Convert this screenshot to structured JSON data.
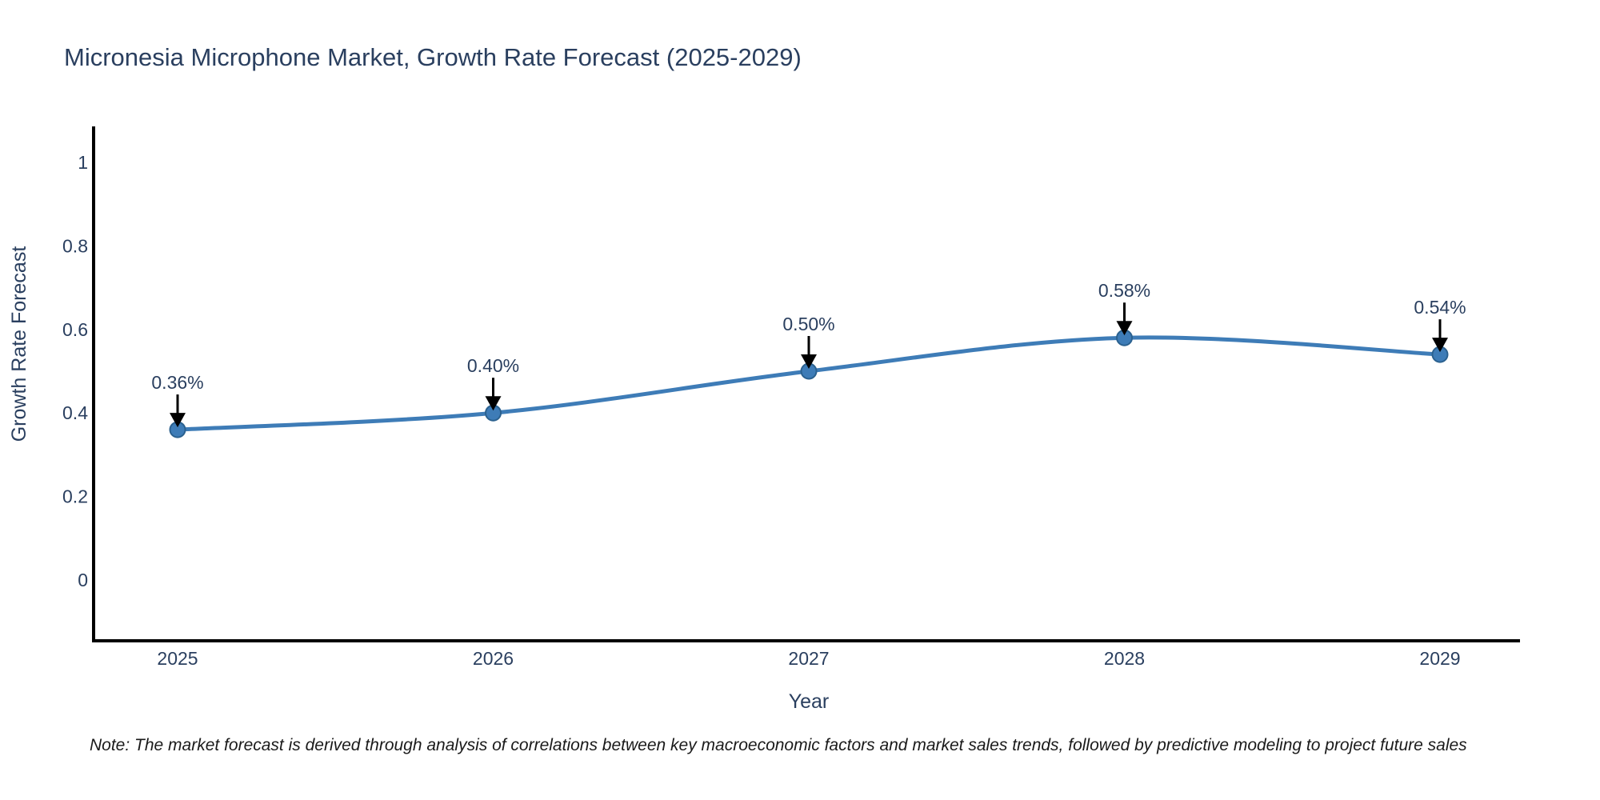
{
  "chart_data": {
    "type": "line",
    "title": "Micronesia Microphone Market, Growth Rate Forecast (2025-2029)",
    "xlabel": "Year",
    "ylabel": "Growth Rate Forecast",
    "categories": [
      2025,
      2026,
      2027,
      2028,
      2029
    ],
    "series": [
      {
        "name": "Growth Rate Forecast",
        "values": [
          0.36,
          0.4,
          0.5,
          0.58,
          0.54
        ],
        "point_labels": [
          "0.36%",
          "0.40%",
          "0.50%",
          "0.58%",
          "0.54%"
        ]
      }
    ],
    "x_tick_labels": [
      "2025",
      "2026",
      "2027",
      "2028",
      "2029"
    ],
    "y_tick_values": [
      0,
      0.2,
      0.4,
      0.6,
      0.8,
      1
    ],
    "y_tick_labels": [
      "0",
      "0.2",
      "0.4",
      "0.6",
      "0.8",
      "1"
    ],
    "ylim": [
      -0.15,
      1.09
    ],
    "grid": false,
    "legend": "none",
    "line_style": "smooth-spline",
    "marker": "circle",
    "annotations": "value labels with downward arrows above each point",
    "colors": {
      "line": "#3E7CB7",
      "marker_fill": "#3E7CB7",
      "marker_edge": "#2B618F",
      "axis_line": "#000000",
      "arrow": "#000000",
      "text": "#2a3f5f",
      "note_text": "#1a1a1a",
      "background": "#ffffff"
    }
  },
  "note": "Note: The market forecast is derived through analysis of correlations between key macroeconomic factors and market sales trends, followed by predictive modeling to project future sales"
}
